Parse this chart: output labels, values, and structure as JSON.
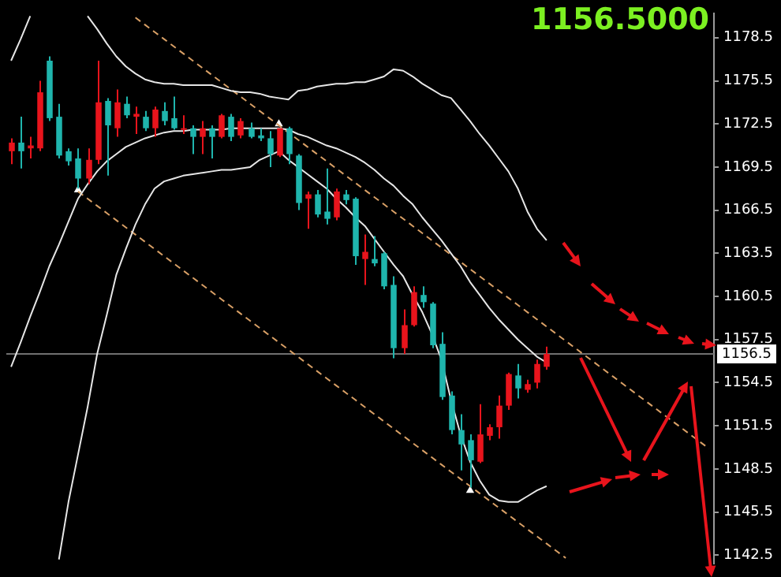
{
  "chart_data": {
    "type": "candlestick",
    "categories": [
      null,
      null,
      null,
      null,
      null,
      null,
      null,
      null,
      null,
      null,
      null,
      null,
      null,
      null,
      null,
      null,
      null,
      null,
      null,
      null,
      null,
      null,
      null,
      null,
      null,
      null,
      null,
      null,
      null,
      null,
      null,
      null,
      null,
      null,
      null,
      null,
      null,
      null,
      null,
      null,
      null,
      null,
      null,
      null,
      null,
      null,
      null,
      null,
      null,
      null,
      null,
      null,
      null,
      null,
      null,
      null,
      null,
      null,
      null,
      null,
      null,
      null,
      null,
      null,
      null,
      null,
      null,
      null,
      null,
      null,
      null,
      null,
      null,
      null
    ],
    "ohlc": [
      [
        1170.6,
        1171.5,
        1169.7,
        1171.2
      ],
      [
        1171.2,
        1173.0,
        1169.4,
        1170.6
      ],
      [
        1170.8,
        1171.6,
        1170.1,
        1171.0
      ],
      [
        1170.8,
        1175.5,
        1170.6,
        1174.7
      ],
      [
        1176.9,
        1177.2,
        1172.7,
        1172.9
      ],
      [
        1173.0,
        1173.9,
        1170.1,
        1170.3
      ],
      [
        1170.6,
        1170.8,
        1169.6,
        1169.9
      ],
      [
        1170.1,
        1170.8,
        1168.0,
        1168.7
      ],
      [
        1168.7,
        1170.8,
        1168.3,
        1170.0
      ],
      [
        1170.0,
        1176.9,
        1169.7,
        1174.0
      ],
      [
        1174.1,
        1174.3,
        1168.9,
        1172.4
      ],
      [
        1172.2,
        1174.9,
        1171.6,
        1174.0
      ],
      [
        1173.9,
        1174.4,
        1172.9,
        1173.1
      ],
      [
        1173.0,
        1173.7,
        1171.8,
        1173.2
      ],
      [
        1173.0,
        1173.4,
        1172.0,
        1172.2
      ],
      [
        1172.2,
        1173.7,
        1171.6,
        1173.5
      ],
      [
        1173.4,
        1174.0,
        1172.4,
        1172.7
      ],
      [
        1172.9,
        1174.4,
        1172.1,
        1172.2
      ],
      [
        1172.1,
        1173.1,
        1171.8,
        1172.2
      ],
      [
        1172.2,
        1172.4,
        1170.4,
        1171.6
      ],
      [
        1171.6,
        1172.7,
        1170.4,
        1172.2
      ],
      [
        1172.2,
        1172.4,
        1170.1,
        1171.6
      ],
      [
        1171.6,
        1173.2,
        1171.5,
        1173.1
      ],
      [
        1173.0,
        1173.2,
        1171.3,
        1171.6
      ],
      [
        1171.7,
        1172.9,
        1171.5,
        1172.7
      ],
      [
        1172.2,
        1172.6,
        1171.5,
        1171.6
      ],
      [
        1171.7,
        1172.2,
        1171.3,
        1171.5
      ],
      [
        1171.5,
        1172.0,
        1169.5,
        1170.4
      ],
      [
        1170.3,
        1172.2,
        1170.2,
        1172.2
      ],
      [
        1172.2,
        1172.3,
        1169.7,
        1170.4
      ],
      [
        1170.3,
        1170.4,
        1166.5,
        1167.0
      ],
      [
        1167.3,
        1167.8,
        1165.2,
        1167.6
      ],
      [
        1167.6,
        1167.9,
        1166.0,
        1166.2
      ],
      [
        1166.4,
        1169.4,
        1165.5,
        1165.9
      ],
      [
        1166.0,
        1168.0,
        1165.8,
        1167.8
      ],
      [
        1167.6,
        1167.9,
        1166.9,
        1167.2
      ],
      [
        1167.3,
        1167.4,
        1162.7,
        1163.3
      ],
      [
        1163.1,
        1164.8,
        1161.3,
        1163.6
      ],
      [
        1163.1,
        1164.7,
        1162.6,
        1162.8
      ],
      [
        1163.5,
        1163.6,
        1161.0,
        1161.2
      ],
      [
        1161.3,
        1161.9,
        1156.2,
        1156.9
      ],
      [
        1156.9,
        1159.6,
        1156.5,
        1158.5
      ],
      [
        1158.5,
        1161.2,
        1158.4,
        1160.8
      ],
      [
        1160.6,
        1161.2,
        1159.7,
        1160.1
      ],
      [
        1160.0,
        1160.1,
        1156.9,
        1157.1
      ],
      [
        1157.2,
        1158.0,
        1153.3,
        1153.5
      ],
      [
        1153.6,
        1153.9,
        1150.9,
        1151.2
      ],
      [
        1151.2,
        1152.3,
        1148.4,
        1150.2
      ],
      [
        1150.5,
        1150.9,
        1147.2,
        1149.1
      ],
      [
        1149.0,
        1153.0,
        1148.9,
        1150.9
      ],
      [
        1150.8,
        1151.6,
        1150.5,
        1151.4
      ],
      [
        1151.4,
        1153.6,
        1150.6,
        1152.9
      ],
      [
        1152.9,
        1155.2,
        1152.6,
        1155.1
      ],
      [
        1155.0,
        1155.8,
        1153.4,
        1154.1
      ],
      [
        1154.0,
        1154.7,
        1153.8,
        1154.4
      ],
      [
        1154.5,
        1156.1,
        1154.1,
        1155.8
      ],
      [
        1155.6,
        1157.0,
        1155.4,
        1156.5
      ],
      null,
      null,
      null,
      null,
      null,
      null,
      null,
      null,
      null,
      null,
      null,
      null,
      null,
      null,
      null,
      null,
      null
    ],
    "colors": [
      "#e8141c",
      "#1fb5ad",
      "#e8141c",
      "#e8141c",
      "#1fb5ad",
      "#1fb5ad",
      "#1fb5ad",
      "#1fb5ad",
      "#e8141c",
      "#e8141c",
      "#1fb5ad",
      "#e8141c",
      "#1fb5ad",
      "#e8141c",
      "#1fb5ad",
      "#e8141c",
      "#1fb5ad",
      "#1fb5ad",
      "#e8141c",
      "#1fb5ad",
      "#e8141c",
      "#1fb5ad",
      "#e8141c",
      "#1fb5ad",
      "#e8141c",
      "#1fb5ad",
      "#1fb5ad",
      "#1fb5ad",
      "#e8141c",
      "#1fb5ad",
      "#1fb5ad",
      "#e8141c",
      "#1fb5ad",
      "#1fb5ad",
      "#e8141c",
      "#1fb5ad",
      "#1fb5ad",
      "#e8141c",
      "#1fb5ad",
      "#1fb5ad",
      "#1fb5ad",
      "#e8141c",
      "#e8141c",
      "#1fb5ad",
      "#1fb5ad",
      "#1fb5ad",
      "#1fb5ad",
      "#1fb5ad",
      "#1fb5ad",
      "#e8141c",
      "#e8141c",
      "#e8141c",
      "#e8141c",
      "#1fb5ad",
      "#e8141c",
      "#e8141c",
      "#e8141c",
      null,
      null,
      null,
      null,
      null,
      null,
      null,
      null,
      null,
      null,
      null,
      null,
      null,
      null,
      null,
      null,
      null
    ],
    "series": [
      {
        "type": "line",
        "color": "#e6e6e6",
        "values": [
          1176.9,
          1178.4,
          1180.0,
          null,
          null,
          null,
          null,
          null,
          1180.0,
          1179.1,
          1178.1,
          1177.2,
          1176.5,
          1176.0,
          1175.6,
          1175.4,
          1175.3,
          1175.3,
          1175.2,
          1175.2,
          1175.2,
          1175.2,
          1175.0,
          1174.8,
          1174.7,
          1174.7,
          1174.6,
          1174.4,
          1174.3,
          1174.2,
          1174.8,
          1174.9,
          1175.1,
          1175.2,
          1175.3,
          1175.3,
          1175.4,
          1175.4,
          1175.6,
          1175.8,
          1176.3,
          1176.2,
          1175.8,
          1175.3,
          1174.9,
          1174.5,
          1174.3,
          1173.5,
          1172.7,
          1171.8,
          1171.0,
          1170.1,
          1169.2,
          1168.0,
          1166.4,
          1165.2,
          1164.4,
          null,
          null,
          null,
          null,
          null,
          null,
          null,
          null,
          null,
          null,
          null,
          null,
          null,
          null,
          null,
          null,
          null
        ]
      },
      {
        "type": "line",
        "color": "#e6e6e6",
        "values": [
          1155.6,
          1157.3,
          1159.1,
          1160.8,
          1162.6,
          1164.1,
          1165.7,
          1167.3,
          1168.3,
          1169.2,
          1169.9,
          1170.4,
          1170.9,
          1171.2,
          1171.5,
          1171.7,
          1171.9,
          1172.0,
          1172.0,
          1172.1,
          1172.1,
          1172.1,
          1172.1,
          1172.2,
          1172.2,
          1172.2,
          1172.2,
          1172.2,
          1172.2,
          1172.1,
          1171.8,
          1171.6,
          1171.3,
          1171.0,
          1170.8,
          1170.5,
          1170.2,
          1169.8,
          1169.3,
          1168.7,
          1168.2,
          1167.5,
          1166.9,
          1166.0,
          1165.2,
          1164.4,
          1163.5,
          1162.6,
          1161.5,
          1160.6,
          1159.7,
          1158.9,
          1158.2,
          1157.5,
          1156.9,
          1156.3,
          1155.9,
          null,
          null,
          null,
          null,
          null,
          null,
          null,
          null,
          null,
          null,
          null,
          null,
          null,
          null,
          null,
          null,
          null
        ]
      },
      {
        "type": "line",
        "color": "#e6e6e6",
        "values": [
          null,
          null,
          null,
          null,
          null,
          1142.2,
          1146.2,
          1149.5,
          1152.8,
          1156.5,
          1159.2,
          1162.0,
          1163.8,
          1165.5,
          1166.9,
          1168.0,
          1168.5,
          1168.7,
          1168.9,
          1169.0,
          1169.1,
          1169.2,
          1169.3,
          1169.3,
          1169.4,
          1169.5,
          1170.0,
          1170.3,
          1170.6,
          1170.0,
          1169.5,
          1169.0,
          1168.5,
          1168.0,
          1167.3,
          1166.7,
          1166.0,
          1165.4,
          1164.5,
          1163.6,
          1162.7,
          1161.9,
          1160.6,
          1159.4,
          1157.9,
          1156.1,
          1153.3,
          1150.9,
          1149.0,
          1147.7,
          1146.7,
          1146.3,
          1146.2,
          1146.2,
          1146.6,
          1147.0,
          1147.3,
          null,
          null,
          null,
          null,
          null,
          null,
          null,
          null,
          null,
          null,
          null,
          null,
          null,
          null,
          null,
          null,
          null
        ]
      },
      {
        "type": "line",
        "color": "#d9a066",
        "line_style": "dashed",
        "values": [
          null,
          null,
          null,
          null,
          null,
          null,
          null,
          null,
          null,
          null,
          null,
          null,
          null,
          1179.9,
          1179.4,
          1178.9,
          1178.4,
          1177.9,
          1177.4,
          1176.9,
          1176.4,
          1175.9,
          1175.4,
          1174.9,
          1174.4,
          1173.9,
          1173.4,
          1172.9,
          1172.4,
          1171.9,
          1171.4,
          1170.9,
          1170.4,
          1169.9,
          1169.4,
          1168.9,
          1168.4,
          1167.9,
          1167.4,
          1166.9,
          1166.4,
          1165.9,
          1165.4,
          1164.9,
          1164.4,
          1163.9,
          1163.4,
          1162.9,
          1162.4,
          1161.9,
          1161.4,
          1160.9,
          1160.4,
          1159.9,
          1159.4,
          1158.9,
          1158.4,
          1157.9,
          1157.4,
          1156.9,
          1156.4,
          1155.9,
          1155.4,
          1154.9,
          1154.4,
          1153.9,
          1153.4,
          1152.9,
          1152.4,
          1151.9,
          1151.4,
          1150.9,
          1150.4,
          1149.9
        ]
      },
      {
        "type": "line",
        "color": "#d9a066",
        "line_style": "dashed",
        "values": [
          null,
          null,
          null,
          null,
          null,
          null,
          null,
          1167.8,
          1167.3,
          1166.8,
          1166.3,
          1165.8,
          1165.3,
          1164.8,
          1164.3,
          1163.8,
          1163.3,
          1162.8,
          1162.3,
          1161.8,
          1161.3,
          1160.8,
          1160.3,
          1159.8,
          1159.3,
          1158.8,
          1158.3,
          1157.8,
          1157.3,
          1156.8,
          1156.3,
          1155.8,
          1155.3,
          1154.8,
          1154.3,
          1153.8,
          1153.3,
          1152.8,
          1152.3,
          1151.8,
          1151.3,
          1150.8,
          1150.3,
          1149.8,
          1149.3,
          1148.8,
          1148.3,
          1147.8,
          1147.3,
          1146.8,
          1146.3,
          1145.8,
          1145.3,
          1144.8,
          1144.3,
          1143.8,
          1143.3,
          1142.8,
          1142.3,
          null,
          null,
          null,
          null,
          null,
          null,
          null,
          null,
          null,
          null,
          null,
          null,
          null,
          null,
          null
        ]
      },
      {
        "type": "scatter",
        "color": "#ffffff",
        "marker": "triangle",
        "values": [
          null,
          null,
          null,
          null,
          null,
          null,
          null,
          1167.9,
          null,
          null,
          null,
          null,
          null,
          null,
          null,
          null,
          null,
          null,
          null,
          null,
          null,
          null,
          null,
          null,
          null,
          null,
          null,
          null,
          1172.5,
          null,
          null,
          null,
          null,
          null,
          null,
          null,
          null,
          null,
          null,
          null,
          null,
          null,
          null,
          null,
          null,
          null,
          null,
          null,
          1147.0,
          null,
          null,
          null,
          null,
          null,
          null,
          null,
          null,
          null,
          null,
          null,
          null,
          null,
          null,
          null,
          null,
          null,
          null,
          null,
          null,
          null,
          null,
          null,
          null,
          null
        ]
      }
    ],
    "ylim": [
      1141.9,
      1180.2
    ],
    "yticks": [
      1142.5,
      1145.5,
      1148.5,
      1151.5,
      1154.5,
      1157.5,
      1160.5,
      1163.5,
      1166.5,
      1169.5,
      1172.5,
      1175.5,
      1178.5
    ],
    "tick_labels": "y",
    "ref_lines": [
      {
        "axis": "y",
        "value": 1156.5,
        "label": "1156.5",
        "color": "#707070"
      }
    ],
    "annotations": [
      "1156.5000"
    ]
  }
}
